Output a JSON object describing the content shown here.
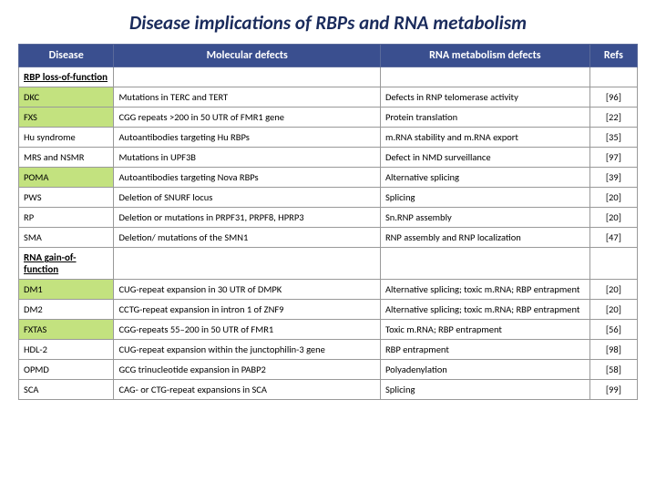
{
  "title": "Disease implications of RBPs and RNA metabolism",
  "headers": {
    "c0": "Disease",
    "c1": "Molecular defects",
    "c2": "RNA metabolism defects",
    "c3": "Refs"
  },
  "sections": {
    "s1": "RBP loss-of-function",
    "s2": "RNA gain-of-function"
  },
  "rows": {
    "r1": {
      "d": "DKC",
      "m": "Mutations in TERC and TERT",
      "r": "Defects in RNP telomerase activity",
      "ref": "[96]",
      "hl": true
    },
    "r2": {
      "d": "FXS",
      "m": "CGG repeats >200 in 50 UTR of FMR1 gene",
      "r": "Protein translation",
      "ref": "[22]",
      "hl": true
    },
    "r3": {
      "d": "Hu syndrome",
      "m": "Autoantibodies targeting Hu RBPs",
      "r": "m.RNA stability and m.RNA export",
      "ref": "[35]",
      "hl": false
    },
    "r4": {
      "d": "MRS and NSMR",
      "m": "Mutations in UPF3B",
      "r": "Defect in NMD surveillance",
      "ref": "[97]",
      "hl": false
    },
    "r5": {
      "d": "POMA",
      "m": "Autoantibodies targeting Nova RBPs",
      "r": "Alternative splicing",
      "ref": "[39]",
      "hl": true
    },
    "r6": {
      "d": "PWS",
      "m": "Deletion of SNURF locus",
      "r": "Splicing",
      "ref": "[20]",
      "hl": false
    },
    "r7": {
      "d": "RP",
      "m": "Deletion or mutations in PRPF31, PRPF8, HPRP3",
      "r": "Sn.RNP assembly",
      "ref": "[20]",
      "hl": false
    },
    "r8": {
      "d": "SMA",
      "m": "Deletion/ mutations of the SMN1",
      "r": "RNP assembly and RNP localization",
      "ref": "[47]",
      "hl": false
    },
    "r9": {
      "d": "DM1",
      "m": "CUG-repeat expansion in 30 UTR of DMPK",
      "r": "Alternative splicing; toxic m.RNA; RBP entrapment",
      "ref": "[20]",
      "hl": true
    },
    "r10": {
      "d": "DM2",
      "m": "CCTG-repeat expansion in intron 1 of ZNF9",
      "r": "Alternative splicing; toxic m.RNA; RBP entrapment",
      "ref": "[20]",
      "hl": false
    },
    "r11": {
      "d": "FXTAS",
      "m": "CGG-repeats 55–200 in 50 UTR of FMR1",
      "r": "Toxic m.RNA; RBP entrapment",
      "ref": "[56]",
      "hl": true
    },
    "r12": {
      "d": "HDL-2",
      "m": "CUG-repeat expansion within the junctophilin-3 gene",
      "r": "RBP entrapment",
      "ref": "[98]",
      "hl": false
    },
    "r13": {
      "d": "OPMD",
      "m": "GCG trinucleotide expansion in PABP2",
      "r": "Polyadenylation",
      "ref": "[58]",
      "hl": false
    },
    "r14": {
      "d": "SCA",
      "m": "CAG- or CTG-repeat expansions in SCA",
      "r": "Splicing",
      "ref": "[99]",
      "hl": false
    }
  },
  "colors": {
    "header_bg": "#3a4f8f",
    "header_text": "#ffffff",
    "highlight_bg": "#c3e27f",
    "border": "#999999",
    "title_color": "#1a2b5c"
  }
}
